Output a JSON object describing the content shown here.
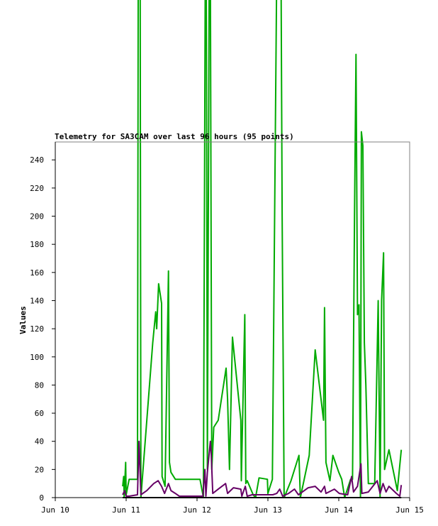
{
  "chart_data": {
    "type": "line",
    "title": "Telemetry for SA3CAM over last 96 hours (95 points)",
    "xlabel": "",
    "ylabel": "Values",
    "x_ticks": [
      "Jun 10",
      "Jun 11",
      "Jun 12",
      "Jun 13",
      "Jun 14",
      "Jun 15"
    ],
    "y_ticks": [
      0,
      20,
      40,
      60,
      80,
      100,
      120,
      140,
      160,
      180,
      200,
      220,
      240
    ],
    "xlim": [
      "2014-06-10 00:00",
      "2014-06-15 00:00"
    ],
    "ylim": [
      0,
      255
    ],
    "grid": false,
    "legend": "none",
    "series": [
      {
        "color": "#00aa00",
        "points": [
          [
            "2014-06-10 22:50",
            8
          ],
          [
            "2014-06-10 23:10",
            15
          ],
          [
            "2014-06-10 23:20",
            0
          ],
          [
            "2014-06-10 23:50",
            25
          ],
          [
            "2014-06-11 00:00",
            2
          ],
          [
            "2014-06-11 01:00",
            13
          ],
          [
            "2014-06-11 03:50",
            13
          ],
          [
            "2014-06-11 04:10",
            500
          ],
          [
            "2014-06-11 04:40",
            500
          ],
          [
            "2014-06-11 05:00",
            0
          ],
          [
            "2014-06-11 09:00",
            110
          ],
          [
            "2014-06-11 10:00",
            132
          ],
          [
            "2014-06-11 10:20",
            120
          ],
          [
            "2014-06-11 11:00",
            152
          ],
          [
            "2014-06-11 12:00",
            138
          ],
          [
            "2014-06-11 12:10",
            15
          ],
          [
            "2014-06-11 13:10",
            8
          ],
          [
            "2014-06-11 14:20",
            161
          ],
          [
            "2014-06-11 14:40",
            25
          ],
          [
            "2014-06-11 15:10",
            18
          ],
          [
            "2014-06-11 16:40",
            13
          ],
          [
            "2014-06-12 00:00",
            13
          ],
          [
            "2014-06-12 01:00",
            13
          ],
          [
            "2014-06-12 02:10",
            0
          ],
          [
            "2014-06-12 02:30",
            195
          ],
          [
            "2014-06-12 03:00",
            500
          ],
          [
            "2014-06-12 03:30",
            20
          ],
          [
            "2014-06-12 04:20",
            500
          ],
          [
            "2014-06-12 05:00",
            20
          ],
          [
            "2014-06-12 05:40",
            50
          ],
          [
            "2014-06-12 07:10",
            55
          ],
          [
            "2014-06-12 09:50",
            92
          ],
          [
            "2014-06-12 10:20",
            70
          ],
          [
            "2014-06-12 11:00",
            20
          ],
          [
            "2014-06-12 12:00",
            114
          ],
          [
            "2014-06-12 14:50",
            55
          ],
          [
            "2014-06-12 15:00",
            12
          ],
          [
            "2014-06-12 16:10",
            130
          ],
          [
            "2014-06-12 16:30",
            10
          ],
          [
            "2014-06-12 17:00",
            12
          ],
          [
            "2014-06-12 19:00",
            2
          ],
          [
            "2014-06-12 19:50",
            0
          ],
          [
            "2014-06-12 21:00",
            14
          ],
          [
            "2014-06-12 23:50",
            13
          ],
          [
            "2014-06-13 00:00",
            3
          ],
          [
            "2014-06-13 01:30",
            13
          ],
          [
            "2014-06-13 03:30",
            500
          ],
          [
            "2014-06-13 04:10",
            500
          ],
          [
            "2014-06-13 04:50",
            200
          ],
          [
            "2014-06-13 05:30",
            0
          ],
          [
            "2014-06-13 07:50",
            12
          ],
          [
            "2014-06-13 10:30",
            30
          ],
          [
            "2014-06-13 11:00",
            0
          ],
          [
            "2014-06-13 14:00",
            30
          ],
          [
            "2014-06-13 16:00",
            105
          ],
          [
            "2014-06-13 18:50",
            55
          ],
          [
            "2014-06-13 19:10",
            135
          ],
          [
            "2014-06-13 19:40",
            25
          ],
          [
            "2014-06-13 21:00",
            12
          ],
          [
            "2014-06-13 22:00",
            30
          ],
          [
            "2014-06-14 00:00",
            18
          ],
          [
            "2014-06-14 01:00",
            13
          ],
          [
            "2014-06-14 02:00",
            0
          ],
          [
            "2014-06-14 04:00",
            13
          ],
          [
            "2014-06-14 04:40",
            13
          ],
          [
            "2014-06-14 05:20",
            200
          ],
          [
            "2014-06-14 05:50",
            315
          ],
          [
            "2014-06-14 06:20",
            130
          ],
          [
            "2014-06-14 06:50",
            137
          ],
          [
            "2014-06-14 07:20",
            0
          ],
          [
            "2014-06-14 07:40",
            260
          ],
          [
            "2014-06-14 08:10",
            250
          ],
          [
            "2014-06-14 08:40",
            110
          ],
          [
            "2014-06-14 09:10",
            80
          ],
          [
            "2014-06-14 10:00",
            10
          ],
          [
            "2014-06-14 12:10",
            10
          ],
          [
            "2014-06-14 13:20",
            140
          ],
          [
            "2014-06-14 14:00",
            0
          ],
          [
            "2014-06-14 14:30",
            140
          ],
          [
            "2014-06-14 15:10",
            174
          ],
          [
            "2014-06-14 15:30",
            20
          ],
          [
            "2014-06-14 17:00",
            34
          ],
          [
            "2014-06-14 19:50",
            5
          ],
          [
            "2014-06-14 21:10",
            34
          ]
        ]
      },
      {
        "color": "#660066",
        "points": [
          [
            "2014-06-10 22:50",
            2
          ],
          [
            "2014-06-10 23:30",
            5
          ],
          [
            "2014-06-11 00:00",
            1
          ],
          [
            "2014-06-11 01:00",
            1
          ],
          [
            "2014-06-11 03:50",
            2
          ],
          [
            "2014-06-11 04:20",
            40
          ],
          [
            "2014-06-11 05:00",
            2
          ],
          [
            "2014-06-11 07:00",
            5
          ],
          [
            "2014-06-11 09:20",
            10
          ],
          [
            "2014-06-11 10:50",
            12
          ],
          [
            "2014-06-11 12:00",
            8
          ],
          [
            "2014-06-11 13:00",
            3
          ],
          [
            "2014-06-11 14:20",
            10
          ],
          [
            "2014-06-11 15:10",
            5
          ],
          [
            "2014-06-11 16:40",
            3
          ],
          [
            "2014-06-11 18:00",
            1
          ],
          [
            "2014-06-12 02:00",
            1
          ],
          [
            "2014-06-12 02:40",
            20
          ],
          [
            "2014-06-12 03:00",
            1
          ],
          [
            "2014-06-12 03:30",
            18
          ],
          [
            "2014-06-12 04:30",
            40
          ],
          [
            "2014-06-12 04:50",
            30
          ],
          [
            "2014-06-12 05:20",
            3
          ],
          [
            "2014-06-12 07:10",
            6
          ],
          [
            "2014-06-12 09:40",
            10
          ],
          [
            "2014-06-12 10:20",
            3
          ],
          [
            "2014-06-12 12:20",
            7
          ],
          [
            "2014-06-12 14:50",
            6
          ],
          [
            "2014-06-12 15:10",
            1
          ],
          [
            "2014-06-12 16:20",
            8
          ],
          [
            "2014-06-12 17:00",
            1
          ],
          [
            "2014-06-12 18:40",
            2
          ],
          [
            "2014-06-12 21:30",
            2
          ],
          [
            "2014-06-13 00:00",
            2
          ],
          [
            "2014-06-13 01:40",
            2
          ],
          [
            "2014-06-13 03:00",
            3
          ],
          [
            "2014-06-13 04:00",
            6
          ],
          [
            "2014-06-13 05:00",
            1
          ],
          [
            "2014-06-13 07:00",
            3
          ],
          [
            "2014-06-13 09:00",
            6
          ],
          [
            "2014-06-13 10:20",
            2
          ],
          [
            "2014-06-13 13:40",
            7
          ],
          [
            "2014-06-13 16:00",
            8
          ],
          [
            "2014-06-13 18:00",
            4
          ],
          [
            "2014-06-13 19:10",
            8
          ],
          [
            "2014-06-13 19:40",
            3
          ],
          [
            "2014-06-13 22:30",
            6
          ],
          [
            "2014-06-14 00:10",
            3
          ],
          [
            "2014-06-14 03:00",
            2
          ],
          [
            "2014-06-14 04:20",
            15
          ],
          [
            "2014-06-14 05:00",
            4
          ],
          [
            "2014-06-14 06:20",
            8
          ],
          [
            "2014-06-14 07:30",
            24
          ],
          [
            "2014-06-14 07:50",
            3
          ],
          [
            "2014-06-14 10:00",
            4
          ],
          [
            "2014-06-14 13:00",
            12
          ],
          [
            "2014-06-14 14:00",
            3
          ],
          [
            "2014-06-14 15:00",
            10
          ],
          [
            "2014-06-14 16:00",
            4
          ],
          [
            "2014-06-14 17:00",
            8
          ],
          [
            "2014-06-14 19:30",
            3
          ],
          [
            "2014-06-14 20:40",
            1
          ],
          [
            "2014-06-14 21:10",
            9
          ]
        ]
      },
      {
        "color": "#000000",
        "points": [
          [
            "2014-06-10 22:50",
            0
          ],
          [
            "2014-06-11 12:00",
            0
          ],
          [
            "2014-06-12 00:00",
            0
          ],
          [
            "2014-06-13 00:00",
            0
          ],
          [
            "2014-06-14 00:00",
            0
          ],
          [
            "2014-06-14 21:10",
            0
          ]
        ]
      }
    ]
  }
}
